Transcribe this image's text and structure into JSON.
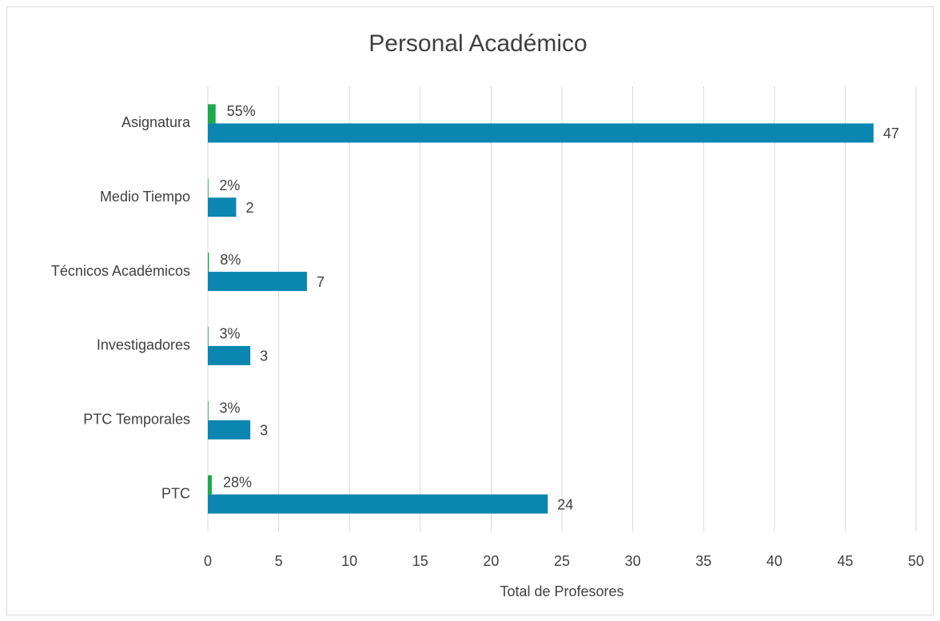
{
  "chart_data": {
    "type": "bar",
    "orientation": "horizontal",
    "title": "Personal Académico",
    "xlabel": "Total de Profesores",
    "categories": [
      "Asignatura",
      "Medio Tiempo",
      "Técnicos Académicos",
      "Investigadores",
      "PTC Temporales",
      "PTC"
    ],
    "series": [
      {
        "color": "#1aab4b",
        "values": [
          0.55,
          0.02,
          0.08,
          0.03,
          0.03,
          0.28
        ],
        "value_labels": [
          "55%",
          "2%",
          "8%",
          "3%",
          "3%",
          "28%"
        ]
      },
      {
        "color": "#0a86b0",
        "values": [
          47,
          2,
          7,
          3,
          3,
          24
        ]
      }
    ],
    "xlim": [
      0,
      50
    ],
    "xticks": [
      0,
      5,
      10,
      15,
      20,
      25,
      30,
      35,
      40,
      45,
      50
    ],
    "grid": true
  }
}
